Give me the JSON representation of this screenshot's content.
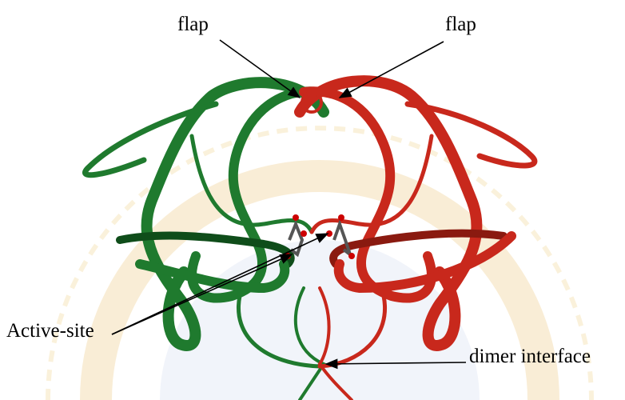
{
  "labels": [
    {
      "text": "flap"
    },
    {
      "text": "flap"
    },
    {
      "text": "Active-site"
    },
    {
      "text": "dimer interface"
    }
  ]
}
